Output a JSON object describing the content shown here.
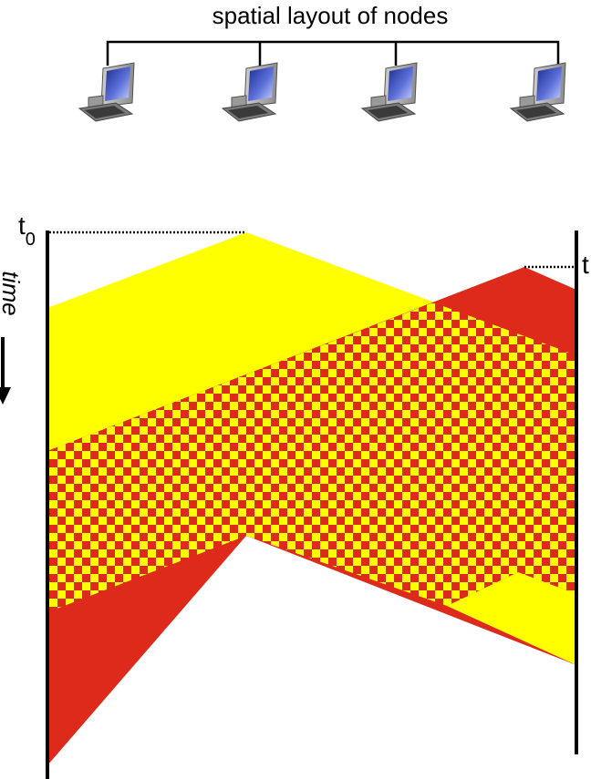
{
  "header": {
    "title": "spatial layout of nodes"
  },
  "axis": {
    "time_label": "time"
  },
  "markers": [
    {
      "base": "t",
      "sub": "0"
    },
    {
      "base": "t",
      "sub": ""
    }
  ],
  "nodes": [
    {
      "icon": "desktop-computer-icon"
    },
    {
      "icon": "desktop-computer-icon"
    },
    {
      "icon": "desktop-computer-icon"
    },
    {
      "icon": "desktop-computer-icon"
    }
  ],
  "colors": {
    "yellow": "#ffff00",
    "red": "#dd2a1b",
    "timeline": "#000000"
  }
}
